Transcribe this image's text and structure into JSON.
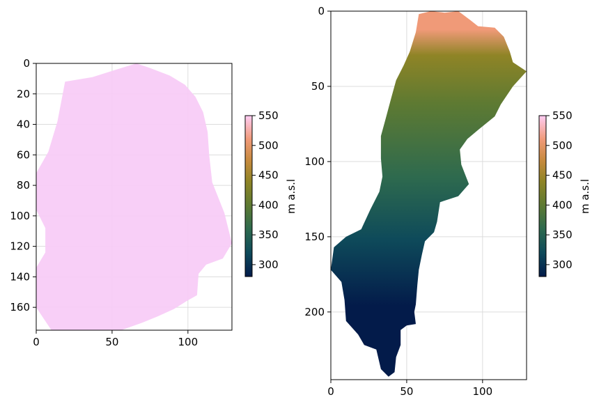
{
  "chart_data": [
    {
      "type": "heatmap",
      "title": "",
      "xlabel": "",
      "ylabel": "",
      "x_range": [
        0,
        129
      ],
      "y_range": [
        175,
        0
      ],
      "x_ticks": [
        "0",
        "50",
        "100"
      ],
      "x_tick_values": [
        0,
        50,
        100
      ],
      "y_ticks": [
        "0",
        "20",
        "40",
        "60",
        "80",
        "100",
        "120",
        "140",
        "160"
      ],
      "y_tick_values": [
        0,
        20,
        40,
        60,
        80,
        100,
        120,
        140,
        160
      ],
      "grid": true,
      "fill_color": "#f7cbf6",
      "outline_points": [
        [
          66,
          0
        ],
        [
          75,
          3
        ],
        [
          88,
          8
        ],
        [
          98,
          14
        ],
        [
          105,
          22
        ],
        [
          110,
          32
        ],
        [
          113,
          45
        ],
        [
          114,
          60
        ],
        [
          116,
          78
        ],
        [
          124,
          98
        ],
        [
          129,
          118
        ],
        [
          123,
          128
        ],
        [
          112,
          132
        ],
        [
          107,
          138
        ],
        [
          106,
          152
        ],
        [
          99,
          156
        ],
        [
          91,
          161
        ],
        [
          80,
          166
        ],
        [
          70,
          170
        ],
        [
          56,
          175
        ],
        [
          10,
          175
        ],
        [
          0,
          160
        ],
        [
          0,
          134
        ],
        [
          6,
          124
        ],
        [
          6,
          108
        ],
        [
          0,
          96
        ],
        [
          0,
          72
        ],
        [
          8,
          58
        ],
        [
          14,
          38
        ],
        [
          19,
          12
        ],
        [
          37,
          9
        ],
        [
          53,
          4
        ]
      ],
      "colorbar": {
        "label": "m a.s.l",
        "ticks": [
          "300",
          "350",
          "400",
          "450",
          "500",
          "550"
        ],
        "tick_values": [
          300,
          350,
          400,
          450,
          500,
          550
        ],
        "range": [
          280,
          550
        ]
      }
    },
    {
      "type": "heatmap",
      "title": "",
      "xlabel": "",
      "ylabel": "",
      "x_range": [
        0,
        129
      ],
      "y_range": [
        245,
        0
      ],
      "x_ticks": [
        "0",
        "50",
        "100"
      ],
      "x_tick_values": [
        0,
        50,
        100
      ],
      "y_ticks": [
        "0",
        "50",
        "100",
        "150",
        "200"
      ],
      "y_tick_values": [
        0,
        50,
        100,
        150,
        200
      ],
      "grid": true,
      "elevation_min": 280,
      "elevation_max": 550,
      "outline_points": [
        [
          58,
          2
        ],
        [
          66,
          0
        ],
        [
          75,
          1
        ],
        [
          84,
          0
        ],
        [
          92,
          6
        ],
        [
          97,
          10
        ],
        [
          108,
          11
        ],
        [
          114,
          17
        ],
        [
          118,
          27
        ],
        [
          120,
          34
        ],
        [
          129,
          40
        ],
        [
          120,
          50
        ],
        [
          112,
          62
        ],
        [
          108,
          70
        ],
        [
          97,
          79
        ],
        [
          90,
          85
        ],
        [
          85,
          92
        ],
        [
          86,
          102
        ],
        [
          91,
          115
        ],
        [
          84,
          123
        ],
        [
          72,
          127
        ],
        [
          70,
          140
        ],
        [
          68,
          147
        ],
        [
          62,
          153
        ],
        [
          60,
          162
        ],
        [
          58,
          172
        ],
        [
          57,
          182
        ],
        [
          56,
          195
        ],
        [
          55,
          200
        ],
        [
          56,
          208
        ],
        [
          50,
          209
        ],
        [
          46,
          212
        ],
        [
          46,
          222
        ],
        [
          43,
          230
        ],
        [
          42,
          240
        ],
        [
          38,
          243
        ],
        [
          33,
          238
        ],
        [
          30,
          225
        ],
        [
          22,
          222
        ],
        [
          18,
          215
        ],
        [
          10,
          206
        ],
        [
          9,
          192
        ],
        [
          7,
          180
        ],
        [
          0,
          172
        ],
        [
          2,
          157
        ],
        [
          10,
          150
        ],
        [
          20,
          145
        ],
        [
          26,
          132
        ],
        [
          32,
          120
        ],
        [
          34,
          110
        ],
        [
          33,
          98
        ],
        [
          33,
          83
        ],
        [
          36,
          72
        ],
        [
          40,
          57
        ],
        [
          43,
          46
        ],
        [
          48,
          36
        ],
        [
          52,
          27
        ],
        [
          56,
          14
        ]
      ],
      "colorbar": {
        "label": "m a.s.l",
        "ticks": [
          "300",
          "350",
          "400",
          "450",
          "500",
          "550"
        ],
        "tick_values": [
          300,
          350,
          400,
          450,
          500,
          550
        ],
        "range": [
          280,
          550
        ]
      }
    }
  ],
  "colormap_stops": [
    {
      "v": 280,
      "c": "#031b4a"
    },
    {
      "v": 320,
      "c": "#0e4a5a"
    },
    {
      "v": 360,
      "c": "#2e6a4e"
    },
    {
      "v": 400,
      "c": "#5e7a32"
    },
    {
      "v": 440,
      "c": "#8f8426"
    },
    {
      "v": 475,
      "c": "#c78a3e"
    },
    {
      "v": 510,
      "c": "#f09a78"
    },
    {
      "v": 550,
      "c": "#ffcdf4"
    }
  ]
}
